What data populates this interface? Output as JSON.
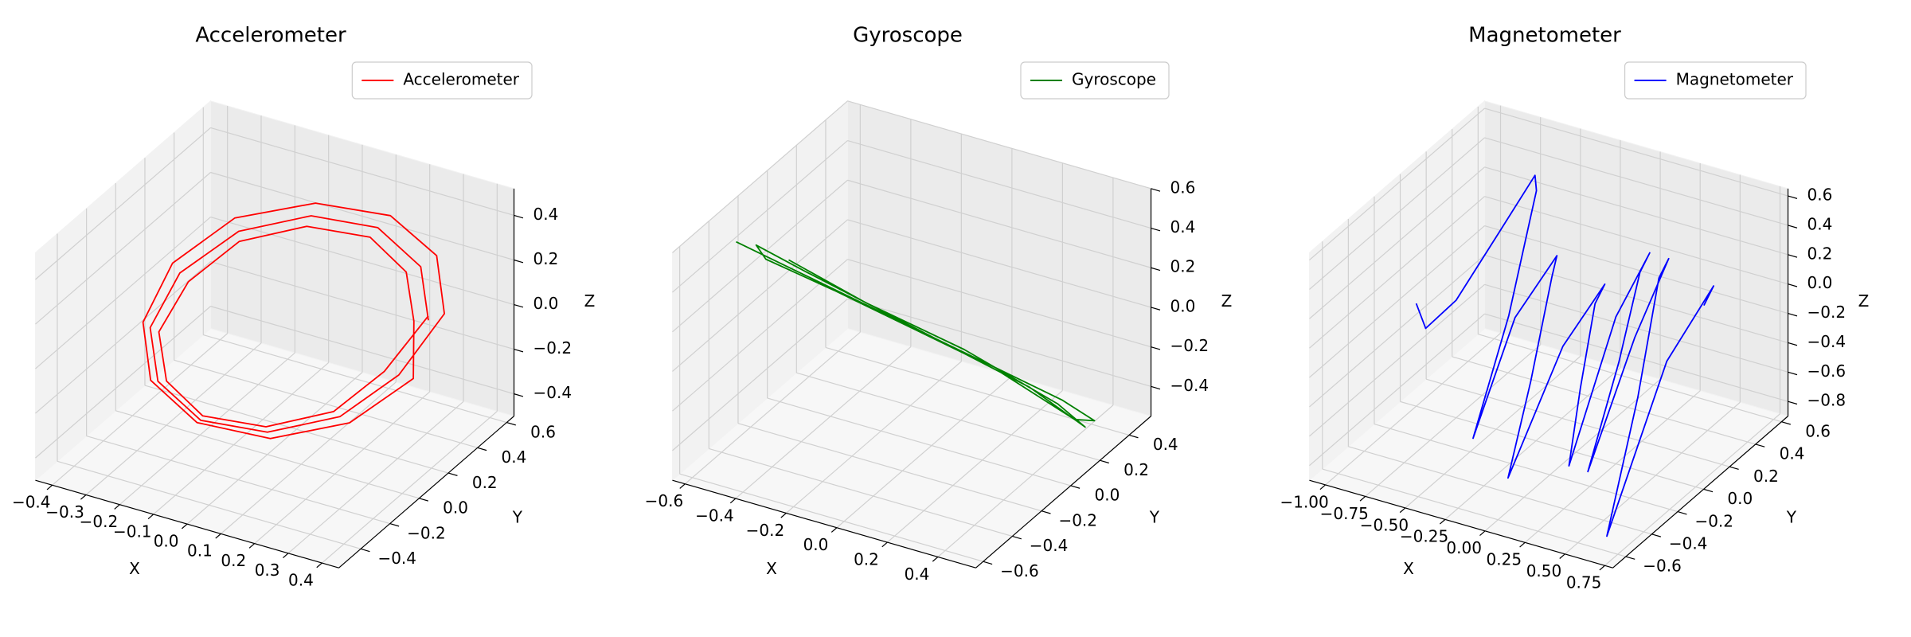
{
  "chart_data": [
    {
      "type": "line3d",
      "title": "Accelerometer",
      "xlabel": "X",
      "ylabel": "Y",
      "zlabel": "Z",
      "grid": true,
      "legend": "upper right",
      "xlim": [
        -0.45,
        0.45
      ],
      "ylim": [
        -0.55,
        0.65
      ],
      "zlim": [
        -0.5,
        0.52
      ],
      "xticks": [
        {
          "value": -0.4,
          "label": "−0.4"
        },
        {
          "value": -0.3,
          "label": "−0.3"
        },
        {
          "value": -0.2,
          "label": "−0.2"
        },
        {
          "value": -0.1,
          "label": "−0.1"
        },
        {
          "value": 0,
          "label": "0.0"
        },
        0.1,
        0.2,
        0.3,
        0.4
      ],
      "yticks": [
        {
          "value": -0.4,
          "label": "−0.4"
        },
        {
          "value": -0.2,
          "label": "−0.2"
        },
        {
          "value": 0,
          "label": "0.0"
        },
        0.2,
        0.4,
        0.6
      ],
      "zticks": [
        {
          "value": -0.4,
          "label": "−0.4"
        },
        {
          "value": -0.2,
          "label": "−0.2"
        },
        {
          "value": 0,
          "label": "0.0"
        },
        0.2,
        0.4
      ],
      "series": [
        {
          "name": "Accelerometer",
          "color": "#ff0000",
          "x": [
            0.3,
            0.26,
            0.15,
            0,
            -0.15,
            -0.26,
            -0.3,
            -0.26,
            -0.15,
            0,
            0.15,
            0.26,
            0.33,
            0.29,
            0.17,
            0,
            -0.17,
            -0.29,
            -0.33,
            -0.29,
            -0.17,
            0,
            0.17,
            0.29,
            0.27,
            0.23,
            0.14,
            0,
            -0.14,
            -0.23,
            -0.27,
            -0.23,
            -0.14,
            0,
            0.14,
            0.23,
            0.3
          ],
          "y": [
            0.41,
            0.45,
            0.41,
            0.3,
            0.15,
            0,
            -0.11,
            -0.15,
            -0.11,
            0,
            0.15,
            0.3,
            0.45,
            0.49,
            0.45,
            0.33,
            0.17,
            0.02,
            -0.09,
            -0.13,
            -0.09,
            0.02,
            0.17,
            0.33,
            0.38,
            0.42,
            0.38,
            0.27,
            0.13,
            -0.01,
            -0.12,
            -0.16,
            -0.12,
            -0.01,
            0.13,
            0.27,
            0.41
          ],
          "z": [
            0,
            0.2,
            0.35,
            0.4,
            0.35,
            0.2,
            0,
            -0.2,
            -0.35,
            -0.4,
            -0.35,
            -0.2,
            0.02,
            0.24,
            0.39,
            0.44,
            0.39,
            0.22,
            0,
            -0.22,
            -0.38,
            -0.44,
            -0.38,
            -0.22,
            0,
            0.18,
            0.32,
            0.37,
            0.32,
            0.18,
            0,
            -0.18,
            -0.32,
            -0.37,
            -0.32,
            -0.18,
            0.02
          ]
        }
      ]
    },
    {
      "type": "line3d",
      "title": "Gyroscope",
      "xlabel": "X",
      "ylabel": "Y",
      "zlabel": "Z",
      "grid": true,
      "legend": "upper right",
      "xlim": [
        -0.65,
        0.55
      ],
      "ylim": [
        -0.65,
        0.55
      ],
      "zlim": [
        -0.55,
        0.6
      ],
      "xticks": [
        {
          "value": -0.6,
          "label": "−0.6"
        },
        {
          "value": -0.4,
          "label": "−0.4"
        },
        {
          "value": -0.2,
          "label": "−0.2"
        },
        {
          "value": 0,
          "label": "0.0"
        },
        0.2,
        0.4
      ],
      "yticks": [
        {
          "value": -0.6,
          "label": "−0.6"
        },
        {
          "value": -0.4,
          "label": "−0.4"
        },
        {
          "value": -0.2,
          "label": "−0.2"
        },
        {
          "value": 0,
          "label": "0.0"
        },
        0.2,
        0.4
      ],
      "zticks": [
        {
          "value": -0.4,
          "label": "−0.4"
        },
        {
          "value": -0.2,
          "label": "−0.2"
        },
        {
          "value": 0,
          "label": "0.0"
        },
        0.2,
        0.4,
        0.6
      ],
      "series": [
        {
          "name": "Gyroscope",
          "color": "#008000",
          "x": [
            -0.6,
            -0.4,
            -0.2,
            0,
            0.2,
            0.4,
            0.5,
            0.45,
            0.2,
            0,
            -0.2,
            -0.4,
            -0.55,
            -0.5,
            -0.3,
            -0.1,
            0.1,
            0.3,
            0.48,
            0.4,
            0.1,
            -0.2,
            -0.45
          ],
          "y": [
            -0.3,
            -0.2,
            -0.1,
            0,
            0.1,
            0.2,
            0.25,
            0.2,
            0.12,
            0.02,
            -0.08,
            -0.18,
            -0.25,
            -0.27,
            -0.15,
            -0.06,
            0.05,
            0.15,
            0.22,
            0.17,
            0.05,
            -0.1,
            -0.2
          ],
          "z": [
            0.45,
            0.3,
            0.15,
            0,
            -0.15,
            -0.3,
            -0.4,
            -0.38,
            -0.18,
            -0.02,
            0.14,
            0.3,
            0.42,
            0.38,
            0.22,
            0.08,
            -0.08,
            -0.24,
            -0.42,
            -0.3,
            -0.06,
            0.16,
            0.35
          ]
        }
      ]
    },
    {
      "type": "line3d",
      "title": "Magnetometer",
      "xlabel": "X",
      "ylabel": "Y",
      "zlabel": "Z",
      "grid": true,
      "legend": "upper right",
      "xlim": [
        -1.1,
        0.8
      ],
      "ylim": [
        -0.7,
        0.65
      ],
      "zlim": [
        -0.9,
        0.65
      ],
      "xticks": [
        {
          "value": -1,
          "label": "−1.00"
        },
        {
          "value": -0.75,
          "label": "−0.75"
        },
        {
          "value": -0.5,
          "label": "−0.50"
        },
        {
          "value": -0.25,
          "label": "−0.25"
        },
        {
          "value": 0,
          "label": "0.00"
        },
        0.25,
        {
          "value": 0.5,
          "label": "0.50"
        },
        0.75
      ],
      "yticks": [
        {
          "value": -0.6,
          "label": "−0.6"
        },
        {
          "value": -0.4,
          "label": "−0.4"
        },
        {
          "value": -0.2,
          "label": "−0.2"
        },
        {
          "value": 0,
          "label": "0.0"
        },
        0.2,
        0.4,
        0.6
      ],
      "zticks": [
        {
          "value": -0.8,
          "label": "−0.8"
        },
        {
          "value": -0.6,
          "label": "−0.6"
        },
        {
          "value": -0.4,
          "label": "−0.4"
        },
        {
          "value": -0.2,
          "label": "−0.2"
        },
        {
          "value": 0,
          "label": "0.0"
        },
        0.2,
        0.4,
        0.6
      ],
      "series": [
        {
          "name": "Magnetometer",
          "color": "#0000ff",
          "x": [
            -1.0,
            -0.9,
            -0.75,
            -0.6,
            -0.5,
            -0.45,
            -0.42,
            -0.4,
            -0.3,
            -0.2,
            -0.15,
            -0.12,
            -0.1,
            0,
            0.1,
            0.12,
            0.15,
            0.2,
            0.25,
            0.3,
            0.32,
            0.35,
            0.4,
            0.45,
            0.5,
            0.52,
            0.55,
            0.6,
            0.65,
            0.7,
            0.72
          ],
          "y": [
            0,
            -0.05,
            0,
            0.15,
            0.3,
            0.25,
            0,
            -0.3,
            -0.1,
            0.1,
            0,
            -0.2,
            -0.4,
            -0.1,
            0.1,
            0,
            -0.15,
            -0.3,
            0,
            0.2,
            0.1,
            -0.1,
            -0.4,
            -0.1,
            0.1,
            0,
            -0.2,
            -0.5,
            -0.1,
            0.2,
            0.1
          ],
          "z": [
            -0.2,
            -0.3,
            -0.1,
            0.3,
            0.6,
            0.55,
            -0.1,
            -0.7,
            0,
            0.3,
            0.25,
            -0.3,
            -0.8,
            -0.1,
            0.2,
            0.15,
            -0.3,
            -0.7,
            0.1,
            0.4,
            0.35,
            -0.1,
            -0.6,
            0.1,
            0.5,
            0.45,
            -0.2,
            -0.9,
            0,
            0.3,
            0.25
          ]
        }
      ]
    }
  ]
}
